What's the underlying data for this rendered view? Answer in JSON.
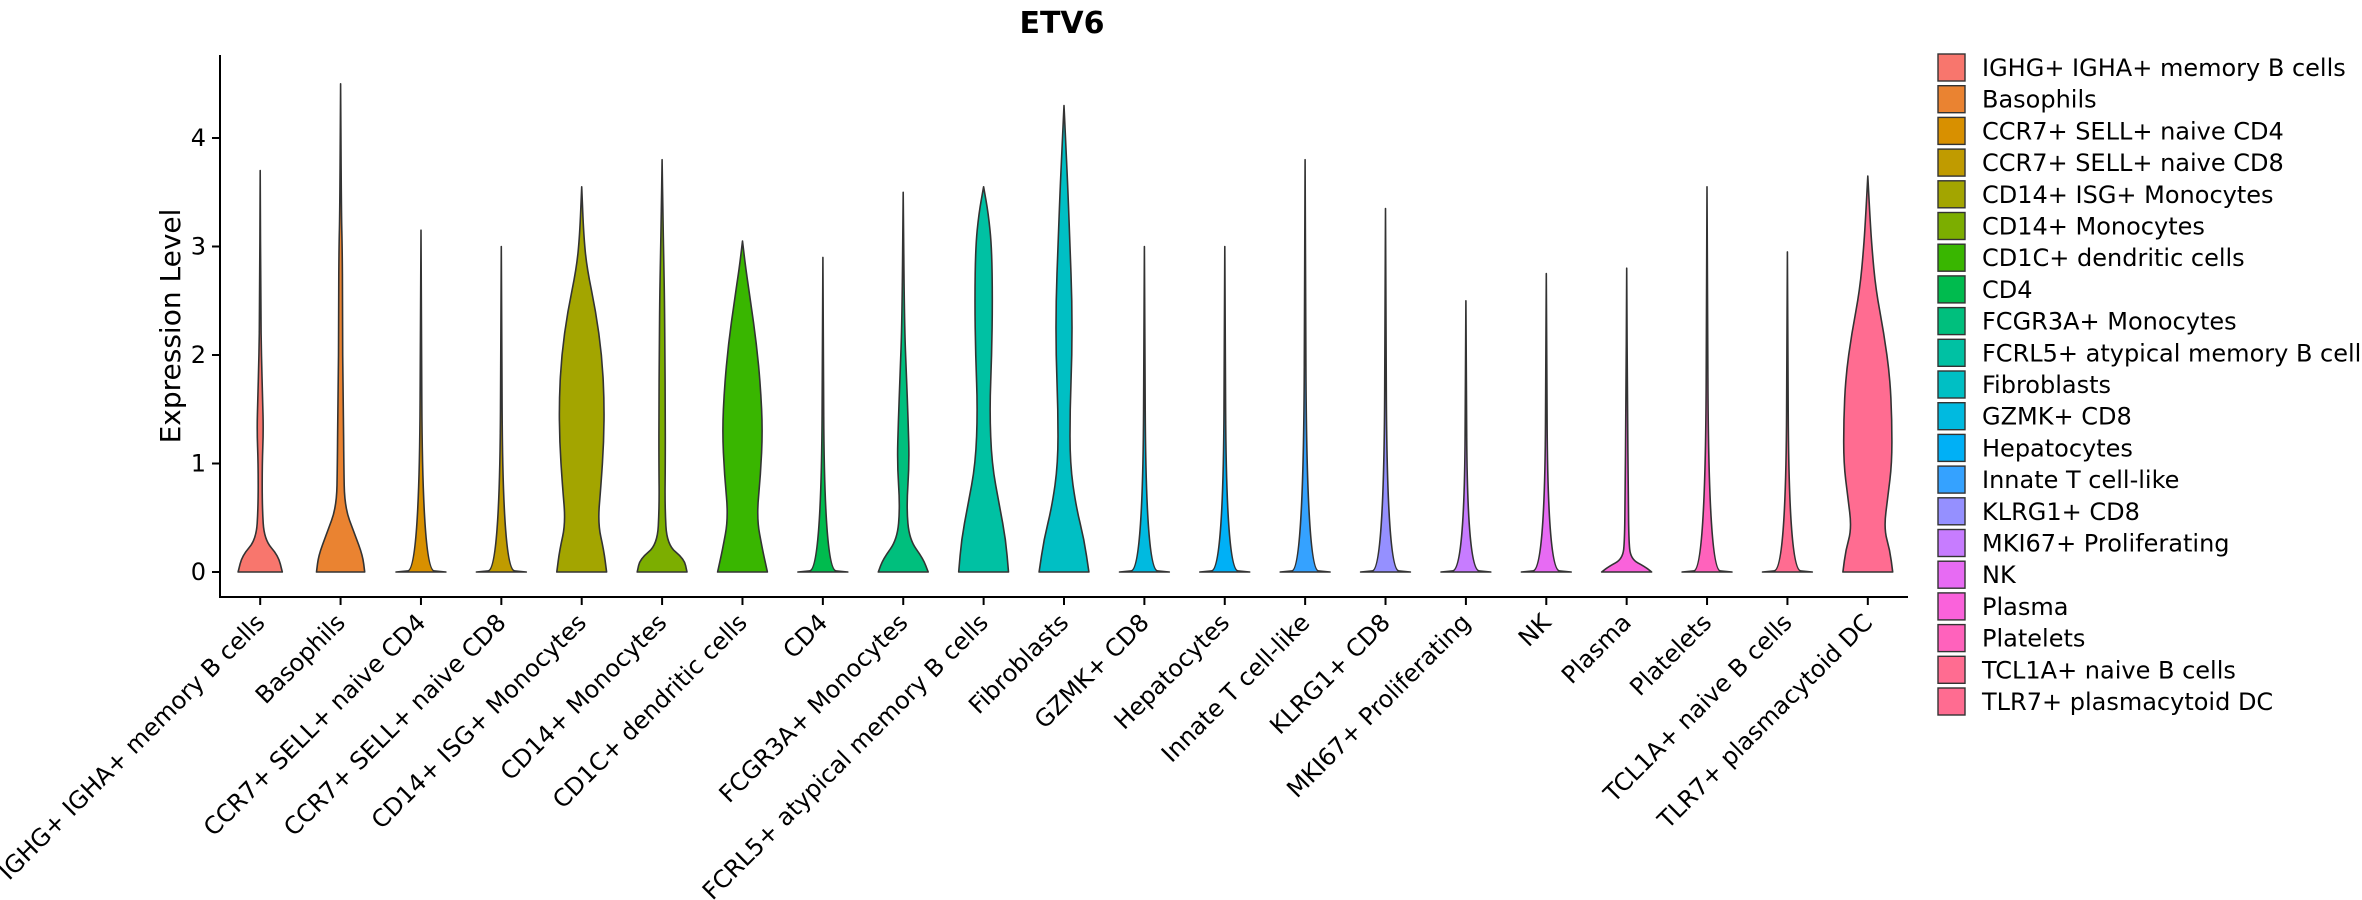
{
  "chart_data": {
    "type": "violin",
    "title": "ETV6",
    "xlabel": "",
    "ylabel": "Expression Level",
    "ylim": [
      -0.25,
      4.8
    ],
    "yticks": [
      0,
      1,
      2,
      3,
      4
    ],
    "grid": false,
    "legend_position": "right",
    "categories": [
      "IGHG+ IGHA+ memory B cells",
      "Basophils",
      "CCR7+ SELL+ naive CD4",
      "CCR7+ SELL+ naive CD8",
      "CD14+ ISG+ Monocytes",
      "CD14+ Monocytes",
      "CD1C+ dendritic cells",
      "CD4",
      "FCGR3A+ Monocytes",
      "FCRL5+ atypical memory B cells",
      "Fibroblasts",
      "GZMK+ CD8",
      "Hepatocytes",
      "Innate T cell-like",
      "KLRG1+ CD8",
      "MKI67+ Proliferating",
      "NK",
      "Plasma",
      "Platelets",
      "TCL1A+ naive B cells",
      "TLR7+ plasmacytoid DC"
    ],
    "legend_labels": [
      " IGHG+ IGHA+ memory B cells",
      "Basophils",
      "CCR7+ SELL+ naive CD4",
      "CCR7+ SELL+ naive CD8",
      "CD14+ ISG+ Monocytes",
      "CD14+ Monocytes",
      "CD1C+ dendritic cells",
      "CD4",
      "FCGR3A+ Monocytes",
      "FCRL5+ atypical memory B cells",
      "Fibroblasts",
      "GZMK+ CD8",
      "Hepatocytes",
      "Innate T cell-like",
      "KLRG1+ CD8",
      "MKI67+ Proliferating",
      "NK",
      "Plasma",
      "Platelets",
      "TCL1A+ naive B cells",
      "TLR7+ plasmacytoid DC"
    ],
    "colors": [
      "#F8766D",
      "#EA8331",
      "#D89000",
      "#C09B00",
      "#A3A500",
      "#7CAE00",
      "#39B600",
      "#00BB4E",
      "#00BF7D",
      "#00C1A3",
      "#00BFC4",
      "#00BAE0",
      "#00B0F6",
      "#35A2FF",
      "#9590FF",
      "#C77CFF",
      "#E76BF3",
      "#FA62DB",
      "#FF62BC",
      "#FF6C91",
      "#FF6C91"
    ],
    "max_expression": [
      3.7,
      4.5,
      3.15,
      3.0,
      3.55,
      3.8,
      3.05,
      2.9,
      3.5,
      3.55,
      4.3,
      3.0,
      3.0,
      3.8,
      3.35,
      2.5,
      2.75,
      2.8,
      3.55,
      2.95,
      3.65
    ],
    "half_width_fraction": [
      [
        [
          0,
          0.55
        ],
        [
          0.15,
          0.45
        ],
        [
          0.3,
          0.1
        ],
        [
          0.6,
          0.05
        ],
        [
          1.0,
          0.05
        ],
        [
          1.3,
          0.08
        ],
        [
          1.6,
          0.06
        ],
        [
          2.0,
          0.03
        ],
        [
          2.4,
          0.015
        ],
        [
          3.7,
          0.0
        ]
      ],
      [
        [
          0,
          0.6
        ],
        [
          0.15,
          0.55
        ],
        [
          0.35,
          0.35
        ],
        [
          0.6,
          0.1
        ],
        [
          1.0,
          0.08
        ],
        [
          1.5,
          0.07
        ],
        [
          2.0,
          0.05
        ],
        [
          2.5,
          0.05
        ],
        [
          3.0,
          0.04
        ],
        [
          3.3,
          0.02
        ],
        [
          4.5,
          0.0
        ]
      ],
      [
        [
          0,
          0.62
        ],
        [
          0.02,
          0.04
        ],
        [
          3.15,
          0.0
        ]
      ],
      [
        [
          0,
          0.62
        ],
        [
          0.02,
          0.04
        ],
        [
          3.0,
          0.0
        ]
      ],
      [
        [
          0,
          0.62
        ],
        [
          0.2,
          0.55
        ],
        [
          0.45,
          0.4
        ],
        [
          0.8,
          0.48
        ],
        [
          1.2,
          0.55
        ],
        [
          1.6,
          0.56
        ],
        [
          2.0,
          0.5
        ],
        [
          2.4,
          0.35
        ],
        [
          2.8,
          0.13
        ],
        [
          3.1,
          0.05
        ],
        [
          3.55,
          0.0
        ]
      ],
      [
        [
          0,
          0.62
        ],
        [
          0.12,
          0.55
        ],
        [
          0.25,
          0.12
        ],
        [
          0.6,
          0.07
        ],
        [
          1.0,
          0.08
        ],
        [
          1.5,
          0.08
        ],
        [
          2.0,
          0.07
        ],
        [
          2.5,
          0.06
        ],
        [
          2.9,
          0.04
        ],
        [
          3.3,
          0.02
        ],
        [
          3.8,
          0.0
        ]
      ],
      [
        [
          0,
          0.62
        ],
        [
          0.2,
          0.5
        ],
        [
          0.5,
          0.35
        ],
        [
          0.9,
          0.45
        ],
        [
          1.3,
          0.5
        ],
        [
          1.7,
          0.45
        ],
        [
          2.1,
          0.35
        ],
        [
          2.5,
          0.2
        ],
        [
          2.8,
          0.08
        ],
        [
          3.05,
          0.0
        ]
      ],
      [
        [
          0,
          0.62
        ],
        [
          0.02,
          0.04
        ],
        [
          2.9,
          0.0
        ]
      ],
      [
        [
          0,
          0.62
        ],
        [
          0.12,
          0.5
        ],
        [
          0.3,
          0.15
        ],
        [
          0.6,
          0.08
        ],
        [
          1.0,
          0.15
        ],
        [
          1.4,
          0.12
        ],
        [
          1.8,
          0.08
        ],
        [
          2.3,
          0.03
        ],
        [
          3.5,
          0.0
        ]
      ],
      [
        [
          0,
          0.62
        ],
        [
          0.3,
          0.55
        ],
        [
          0.6,
          0.4
        ],
        [
          1.0,
          0.2
        ],
        [
          1.5,
          0.15
        ],
        [
          2.0,
          0.2
        ],
        [
          2.5,
          0.22
        ],
        [
          3.0,
          0.2
        ],
        [
          3.3,
          0.12
        ],
        [
          3.55,
          0.0
        ]
      ],
      [
        [
          0,
          0.62
        ],
        [
          0.3,
          0.5
        ],
        [
          0.6,
          0.3
        ],
        [
          1.0,
          0.15
        ],
        [
          1.5,
          0.15
        ],
        [
          2.0,
          0.2
        ],
        [
          2.5,
          0.2
        ],
        [
          3.0,
          0.15
        ],
        [
          3.5,
          0.1
        ],
        [
          3.9,
          0.05
        ],
        [
          4.3,
          0.0
        ]
      ],
      [
        [
          0,
          0.62
        ],
        [
          0.02,
          0.04
        ],
        [
          3.0,
          0.0
        ]
      ],
      [
        [
          0,
          0.62
        ],
        [
          0.02,
          0.04
        ],
        [
          3.0,
          0.0
        ]
      ],
      [
        [
          0,
          0.62
        ],
        [
          0.02,
          0.04
        ],
        [
          3.8,
          0.0
        ]
      ],
      [
        [
          0,
          0.62
        ],
        [
          0.02,
          0.04
        ],
        [
          3.35,
          0.0
        ]
      ],
      [
        [
          0,
          0.62
        ],
        [
          0.02,
          0.04
        ],
        [
          2.5,
          0.0
        ]
      ],
      [
        [
          0,
          0.62
        ],
        [
          0.02,
          0.04
        ],
        [
          2.75,
          0.0
        ]
      ],
      [
        [
          0,
          0.62
        ],
        [
          0.05,
          0.45
        ],
        [
          0.12,
          0.1
        ],
        [
          0.3,
          0.05
        ],
        [
          0.8,
          0.04
        ],
        [
          1.4,
          0.02
        ],
        [
          2.8,
          0.0
        ]
      ],
      [
        [
          0,
          0.62
        ],
        [
          0.02,
          0.04
        ],
        [
          3.55,
          0.0
        ]
      ],
      [
        [
          0,
          0.62
        ],
        [
          0.02,
          0.04
        ],
        [
          2.95,
          0.0
        ]
      ],
      [
        [
          0,
          0.62
        ],
        [
          0.2,
          0.55
        ],
        [
          0.4,
          0.4
        ],
        [
          0.7,
          0.5
        ],
        [
          1.0,
          0.6
        ],
        [
          1.4,
          0.6
        ],
        [
          1.8,
          0.55
        ],
        [
          2.2,
          0.4
        ],
        [
          2.6,
          0.2
        ],
        [
          3.0,
          0.1
        ],
        [
          3.3,
          0.05
        ],
        [
          3.65,
          0.0
        ]
      ]
    ]
  }
}
